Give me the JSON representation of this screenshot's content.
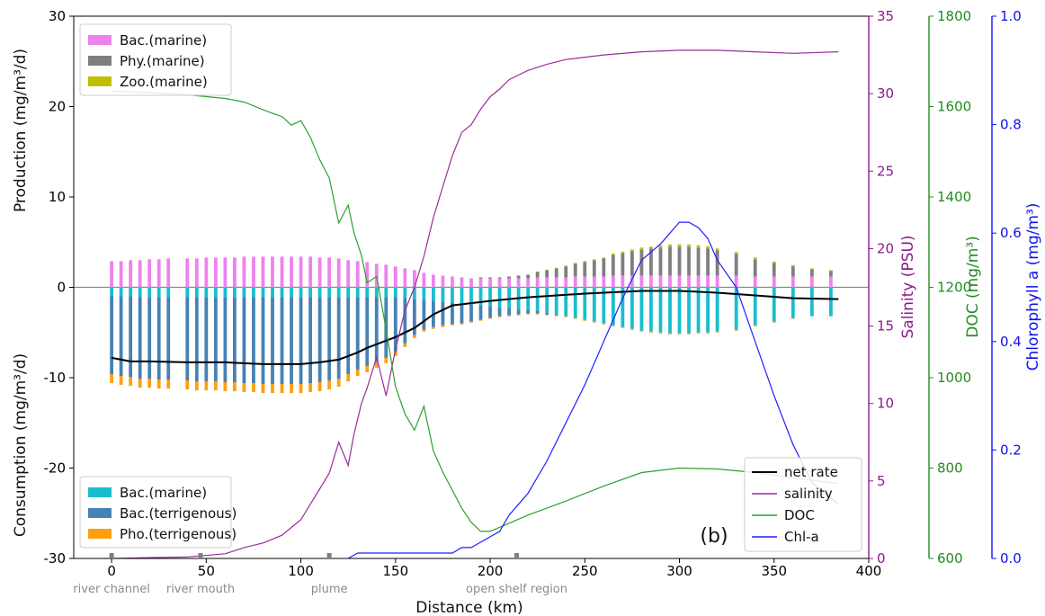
{
  "chart_data": {
    "type": "bar",
    "panel_label": "(b)",
    "xlabel": "Distance (km)",
    "xlim": [
      -20,
      400
    ],
    "xticks": [
      0,
      50,
      100,
      150,
      200,
      250,
      300,
      350,
      400
    ],
    "axes": {
      "production": {
        "label_top": "Production (mg/m³/d)",
        "label_bottom": "Consumption (mg/m³/d)",
        "ylim": [
          -30,
          30
        ],
        "ticks": [
          -30,
          -20,
          -10,
          0,
          10,
          20,
          30
        ],
        "color": "#000000"
      },
      "salinity": {
        "label": "Salinity (PSU)",
        "ylim": [
          0,
          35
        ],
        "ticks": [
          0,
          5,
          10,
          15,
          20,
          25,
          30,
          35
        ],
        "color": "#8b1a8b"
      },
      "doc": {
        "label": "DOC (mg/m³)",
        "ylim": [
          600,
          1800
        ],
        "ticks": [
          600,
          800,
          1000,
          1200,
          1400,
          1600,
          1800
        ],
        "color": "#228b22"
      },
      "chla": {
        "label": "Chlorophyll a (mg/m³)",
        "ylim": [
          0,
          1.0
        ],
        "ticks": [
          "0.0",
          "0.2",
          "0.4",
          "0.6",
          "0.8",
          "1.0"
        ],
        "color": "#1010ee"
      }
    },
    "regions": [
      {
        "name": "river channel",
        "x": 0
      },
      {
        "name": "river mouth",
        "x": 47
      },
      {
        "name": "plume",
        "x": 115
      },
      {
        "name": "open shelf region",
        "x": 214
      }
    ],
    "bar_x": [
      0,
      5,
      10,
      15,
      20,
      25,
      30,
      40,
      45,
      50,
      55,
      60,
      65,
      70,
      75,
      80,
      85,
      90,
      95,
      100,
      105,
      110,
      115,
      120,
      125,
      130,
      135,
      140,
      145,
      150,
      155,
      160,
      165,
      170,
      175,
      180,
      185,
      190,
      195,
      200,
      205,
      210,
      215,
      220,
      225,
      230,
      235,
      240,
      245,
      250,
      255,
      260,
      265,
      270,
      275,
      280,
      285,
      290,
      295,
      300,
      305,
      310,
      315,
      320,
      330,
      340,
      350,
      360,
      370,
      380
    ],
    "production_series": [
      {
        "name": "Bac.(marine)",
        "color": "#ee82ee",
        "values": [
          2.9,
          2.9,
          3.0,
          3.0,
          3.1,
          3.1,
          3.2,
          3.2,
          3.2,
          3.3,
          3.3,
          3.3,
          3.3,
          3.4,
          3.4,
          3.4,
          3.4,
          3.4,
          3.4,
          3.4,
          3.4,
          3.3,
          3.3,
          3.2,
          3.0,
          2.9,
          2.8,
          2.6,
          2.5,
          2.3,
          2.1,
          1.9,
          1.6,
          1.4,
          1.3,
          1.2,
          1.1,
          1.0,
          1.0,
          1.0,
          1.0,
          1.0,
          1.0,
          1.0,
          1.1,
          1.1,
          1.1,
          1.1,
          1.2,
          1.2,
          1.2,
          1.2,
          1.3,
          1.3,
          1.3,
          1.3,
          1.3,
          1.3,
          1.3,
          1.3,
          1.3,
          1.3,
          1.3,
          1.3,
          1.3,
          1.2,
          1.2,
          1.2,
          1.2,
          1.2
        ]
      },
      {
        "name": "Phy.(marine)",
        "color": "#7f7f7f",
        "values": [
          0,
          0,
          0,
          0,
          0,
          0,
          0,
          0,
          0,
          0,
          0,
          0,
          0,
          0,
          0,
          0,
          0,
          0,
          0,
          0,
          0,
          0,
          0,
          0,
          0,
          0,
          0,
          0,
          0,
          0,
          0,
          0,
          0,
          0,
          0,
          0,
          0,
          0,
          0.1,
          0.1,
          0.1,
          0.2,
          0.3,
          0.4,
          0.6,
          0.8,
          1.0,
          1.2,
          1.4,
          1.6,
          1.8,
          2.0,
          2.3,
          2.5,
          2.7,
          2.9,
          3.0,
          3.1,
          3.2,
          3.2,
          3.2,
          3.1,
          3.0,
          2.8,
          2.4,
          1.9,
          1.5,
          1.1,
          0.8,
          0.6
        ]
      },
      {
        "name": "Zoo.(marine)",
        "color": "#bfbf00",
        "values": [
          0,
          0,
          0,
          0,
          0,
          0,
          0,
          0,
          0,
          0,
          0,
          0,
          0,
          0,
          0,
          0,
          0,
          0,
          0,
          0,
          0,
          0,
          0,
          0,
          0,
          0,
          0,
          0,
          0,
          0,
          0,
          0,
          0,
          0,
          0,
          0,
          0,
          0,
          0,
          0,
          0,
          0,
          0,
          0,
          0.05,
          0.05,
          0.05,
          0.1,
          0.1,
          0.1,
          0.1,
          0.1,
          0.15,
          0.15,
          0.2,
          0.2,
          0.2,
          0.25,
          0.25,
          0.25,
          0.25,
          0.25,
          0.25,
          0.2,
          0.2,
          0.2,
          0.15,
          0.15,
          0.1,
          0.1
        ]
      }
    ],
    "consumption_series": [
      {
        "name": "Bac.(marine)",
        "color": "#17becf",
        "values": [
          1.0,
          1.0,
          1.0,
          1.1,
          1.1,
          1.1,
          1.1,
          1.1,
          1.1,
          1.1,
          1.1,
          1.1,
          1.1,
          1.1,
          1.1,
          1.1,
          1.1,
          1.1,
          1.1,
          1.1,
          1.1,
          1.1,
          1.1,
          1.1,
          1.1,
          1.1,
          1.1,
          1.1,
          1.1,
          1.1,
          1.2,
          1.3,
          1.4,
          1.5,
          1.6,
          1.7,
          1.8,
          1.9,
          2.0,
          2.1,
          2.2,
          2.3,
          2.4,
          2.5,
          2.6,
          2.8,
          3.0,
          3.2,
          3.4,
          3.6,
          3.8,
          4.0,
          4.2,
          4.4,
          4.6,
          4.8,
          4.9,
          5.0,
          5.1,
          5.1,
          5.1,
          5.0,
          5.0,
          4.9,
          4.7,
          4.2,
          3.8,
          3.4,
          3.2,
          3.2
        ]
      },
      {
        "name": "Bac.(terrigenous)",
        "color": "#4682b4",
        "values": [
          8.6,
          8.8,
          8.9,
          9.0,
          9.0,
          9.1,
          9.1,
          9.2,
          9.3,
          9.3,
          9.3,
          9.4,
          9.4,
          9.5,
          9.5,
          9.6,
          9.6,
          9.6,
          9.6,
          9.6,
          9.5,
          9.4,
          9.2,
          9.0,
          8.5,
          8.0,
          7.6,
          7.2,
          6.7,
          6.0,
          5.0,
          4.0,
          3.3,
          2.9,
          2.6,
          2.4,
          2.2,
          1.9,
          1.6,
          1.3,
          1.0,
          0.8,
          0.6,
          0.4,
          0.3,
          0.2,
          0.1,
          0,
          0,
          0,
          0,
          0,
          0,
          0,
          0,
          0,
          0,
          0,
          0,
          0,
          0,
          0,
          0,
          0,
          0,
          0,
          0,
          0,
          0,
          0
        ]
      },
      {
        "name": "Pho.(terrigenous)",
        "color": "#ff9f10",
        "values": [
          1.0,
          1.0,
          1.0,
          1.0,
          1.0,
          1.0,
          1.0,
          1.0,
          1.0,
          1.0,
          1.0,
          1.0,
          1.0,
          1.0,
          1.0,
          1.0,
          1.0,
          1.0,
          1.0,
          1.0,
          1.0,
          1.0,
          1.0,
          0.9,
          0.8,
          0.7,
          0.7,
          0.6,
          0.6,
          0.5,
          0.4,
          0.3,
          0.2,
          0.2,
          0.2,
          0.1,
          0.1,
          0.1,
          0.1,
          0.1,
          0.1,
          0.1,
          0.1,
          0.1,
          0.1,
          0.1,
          0.1,
          0.1,
          0.1,
          0.1,
          0.1,
          0.1,
          0.1,
          0.1,
          0.1,
          0.1,
          0.1,
          0.1,
          0.1,
          0.1,
          0.1,
          0.1,
          0.1,
          0.1,
          0.1,
          0.1,
          0.1,
          0.1,
          0,
          0
        ]
      }
    ],
    "lines": [
      {
        "name": "net rate",
        "axis": "production",
        "color": "#000000",
        "x": [
          0,
          10,
          20,
          40,
          60,
          80,
          100,
          110,
          120,
          125,
          130,
          135,
          140,
          150,
          160,
          170,
          180,
          200,
          220,
          250,
          280,
          300,
          320,
          340,
          360,
          384
        ],
        "y": [
          -7.8,
          -8.2,
          -8.2,
          -8.3,
          -8.3,
          -8.5,
          -8.5,
          -8.3,
          -8.0,
          -7.6,
          -7.2,
          -6.7,
          -6.3,
          -5.5,
          -4.5,
          -3.0,
          -2.0,
          -1.5,
          -1.1,
          -0.7,
          -0.4,
          -0.4,
          -0.6,
          -0.9,
          -1.2,
          -1.3
        ]
      },
      {
        "name": "salinity",
        "axis": "salinity",
        "color": "#9b2c9b",
        "x": [
          0,
          20,
          40,
          60,
          70,
          80,
          90,
          95,
          100,
          105,
          110,
          115,
          120,
          125,
          128,
          132,
          135,
          140,
          145,
          150,
          155,
          160,
          165,
          170,
          175,
          180,
          185,
          190,
          195,
          200,
          205,
          210,
          215,
          220,
          230,
          240,
          260,
          280,
          300,
          320,
          340,
          360,
          384
        ],
        "y": [
          0,
          0.05,
          0.1,
          0.3,
          0.7,
          1.0,
          1.5,
          2.0,
          2.5,
          3.5,
          4.5,
          5.5,
          7.5,
          6.0,
          8.0,
          10.0,
          11.0,
          13.0,
          10.5,
          13.5,
          16.0,
          17.5,
          19.5,
          22.0,
          24.0,
          26.0,
          27.5,
          28.0,
          29.0,
          29.8,
          30.3,
          30.9,
          31.2,
          31.5,
          31.9,
          32.2,
          32.5,
          32.7,
          32.8,
          32.8,
          32.7,
          32.6,
          32.7
        ]
      },
      {
        "name": "DOC",
        "axis": "doc",
        "color": "#2ca02c",
        "x": [
          0,
          20,
          40,
          60,
          70,
          80,
          85,
          90,
          95,
          100,
          105,
          110,
          115,
          120,
          125,
          128,
          132,
          135,
          140,
          145,
          150,
          155,
          160,
          165,
          170,
          175,
          180,
          185,
          190,
          195,
          200,
          220,
          240,
          260,
          280,
          300,
          320,
          340,
          360,
          384
        ],
        "y": [
          1634,
          1631,
          1626,
          1618,
          1610,
          1593,
          1585,
          1578,
          1559,
          1569,
          1532,
          1482,
          1442,
          1342,
          1382,
          1321,
          1271,
          1210,
          1224,
          1107,
          980,
          920,
          884,
          937,
          838,
          791,
          751,
          711,
          680,
          660,
          660,
          696,
          727,
          760,
          790,
          800,
          798,
          790,
          778,
          766
        ]
      },
      {
        "name": "Chl-a",
        "axis": "chla",
        "color": "#1f1fff",
        "x": [
          125,
          130,
          140,
          160,
          180,
          185,
          190,
          195,
          200,
          205,
          210,
          215,
          220,
          230,
          240,
          250,
          260,
          270,
          280,
          290,
          295,
          300,
          305,
          310,
          315,
          320,
          330,
          340,
          350,
          360,
          370,
          384
        ],
        "y": [
          0,
          0.01,
          0.01,
          0.01,
          0.01,
          0.02,
          0.02,
          0.03,
          0.04,
          0.05,
          0.08,
          0.1,
          0.12,
          0.18,
          0.25,
          0.32,
          0.4,
          0.48,
          0.55,
          0.58,
          0.6,
          0.62,
          0.62,
          0.61,
          0.59,
          0.55,
          0.5,
          0.4,
          0.3,
          0.21,
          0.14,
          0.1
        ]
      }
    ],
    "legend_production": [
      "Bac.(marine)",
      "Phy.(marine)",
      "Zoo.(marine)"
    ],
    "legend_consumption": [
      "Bac.(marine)",
      "Bac.(terrigenous)",
      "Pho.(terrigenous)"
    ],
    "legend_lines": [
      "net rate",
      "salinity",
      "DOC",
      "Chl-a"
    ]
  }
}
